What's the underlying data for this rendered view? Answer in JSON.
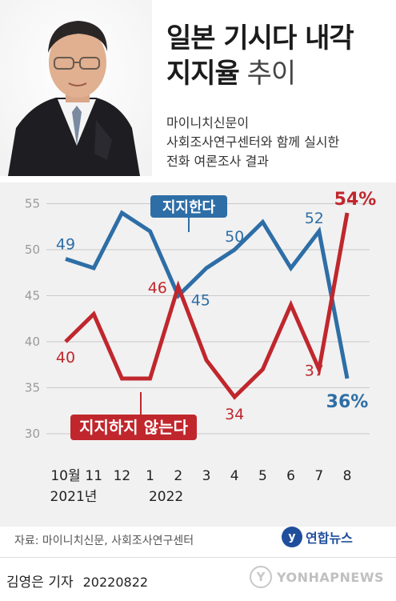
{
  "header": {
    "title_line1": "일본 기시다 내각",
    "title_line2_bold": "지지율",
    "title_line2_light": " 추이",
    "subtitle_lines": [
      "마이니치신문이",
      "사회조사연구센터와 함께 실시한",
      "전화 여론조사 결과"
    ]
  },
  "chart_data": {
    "type": "line",
    "categories": [
      "10월",
      "11",
      "12",
      "1",
      "2",
      "3",
      "4",
      "5",
      "6",
      "7",
      "8"
    ],
    "category_year_labels": [
      {
        "index": 0,
        "text": "2021년"
      },
      {
        "index": 3,
        "text": "2022"
      }
    ],
    "ylim": [
      30,
      55
    ],
    "y_ticks": [
      30,
      35,
      40,
      45,
      50,
      55
    ],
    "grid": true,
    "series": [
      {
        "name": "지지한다",
        "color": "#2e6ea6",
        "values": [
          49,
          48,
          54,
          52,
          45,
          48,
          50,
          53,
          48,
          52,
          36
        ],
        "labels": [
          {
            "index": 0,
            "text": "49"
          },
          {
            "index": 4,
            "text": "45"
          },
          {
            "index": 6,
            "text": "50"
          },
          {
            "index": 9,
            "text": "52"
          },
          {
            "index": 10,
            "text": "36%"
          }
        ]
      },
      {
        "name": "지지하지 않는다",
        "color": "#c0272d",
        "values": [
          40,
          43,
          36,
          36,
          46,
          38,
          34,
          37,
          44,
          37,
          54
        ],
        "labels": [
          {
            "index": 0,
            "text": "40"
          },
          {
            "index": 4,
            "text": "46"
          },
          {
            "index": 6,
            "text": "34"
          },
          {
            "index": 9,
            "text": "37"
          },
          {
            "index": 10,
            "text": "54%"
          }
        ]
      }
    ]
  },
  "footer": {
    "source": "자료: 마이니치신문, 사회조사연구센터",
    "logo_mark": "y",
    "logo_text": "연합뉴스",
    "byline": "김영은 기자",
    "date": "20220822",
    "watermark_mark": "Y",
    "watermark_text": "YONHAPNEWS"
  }
}
